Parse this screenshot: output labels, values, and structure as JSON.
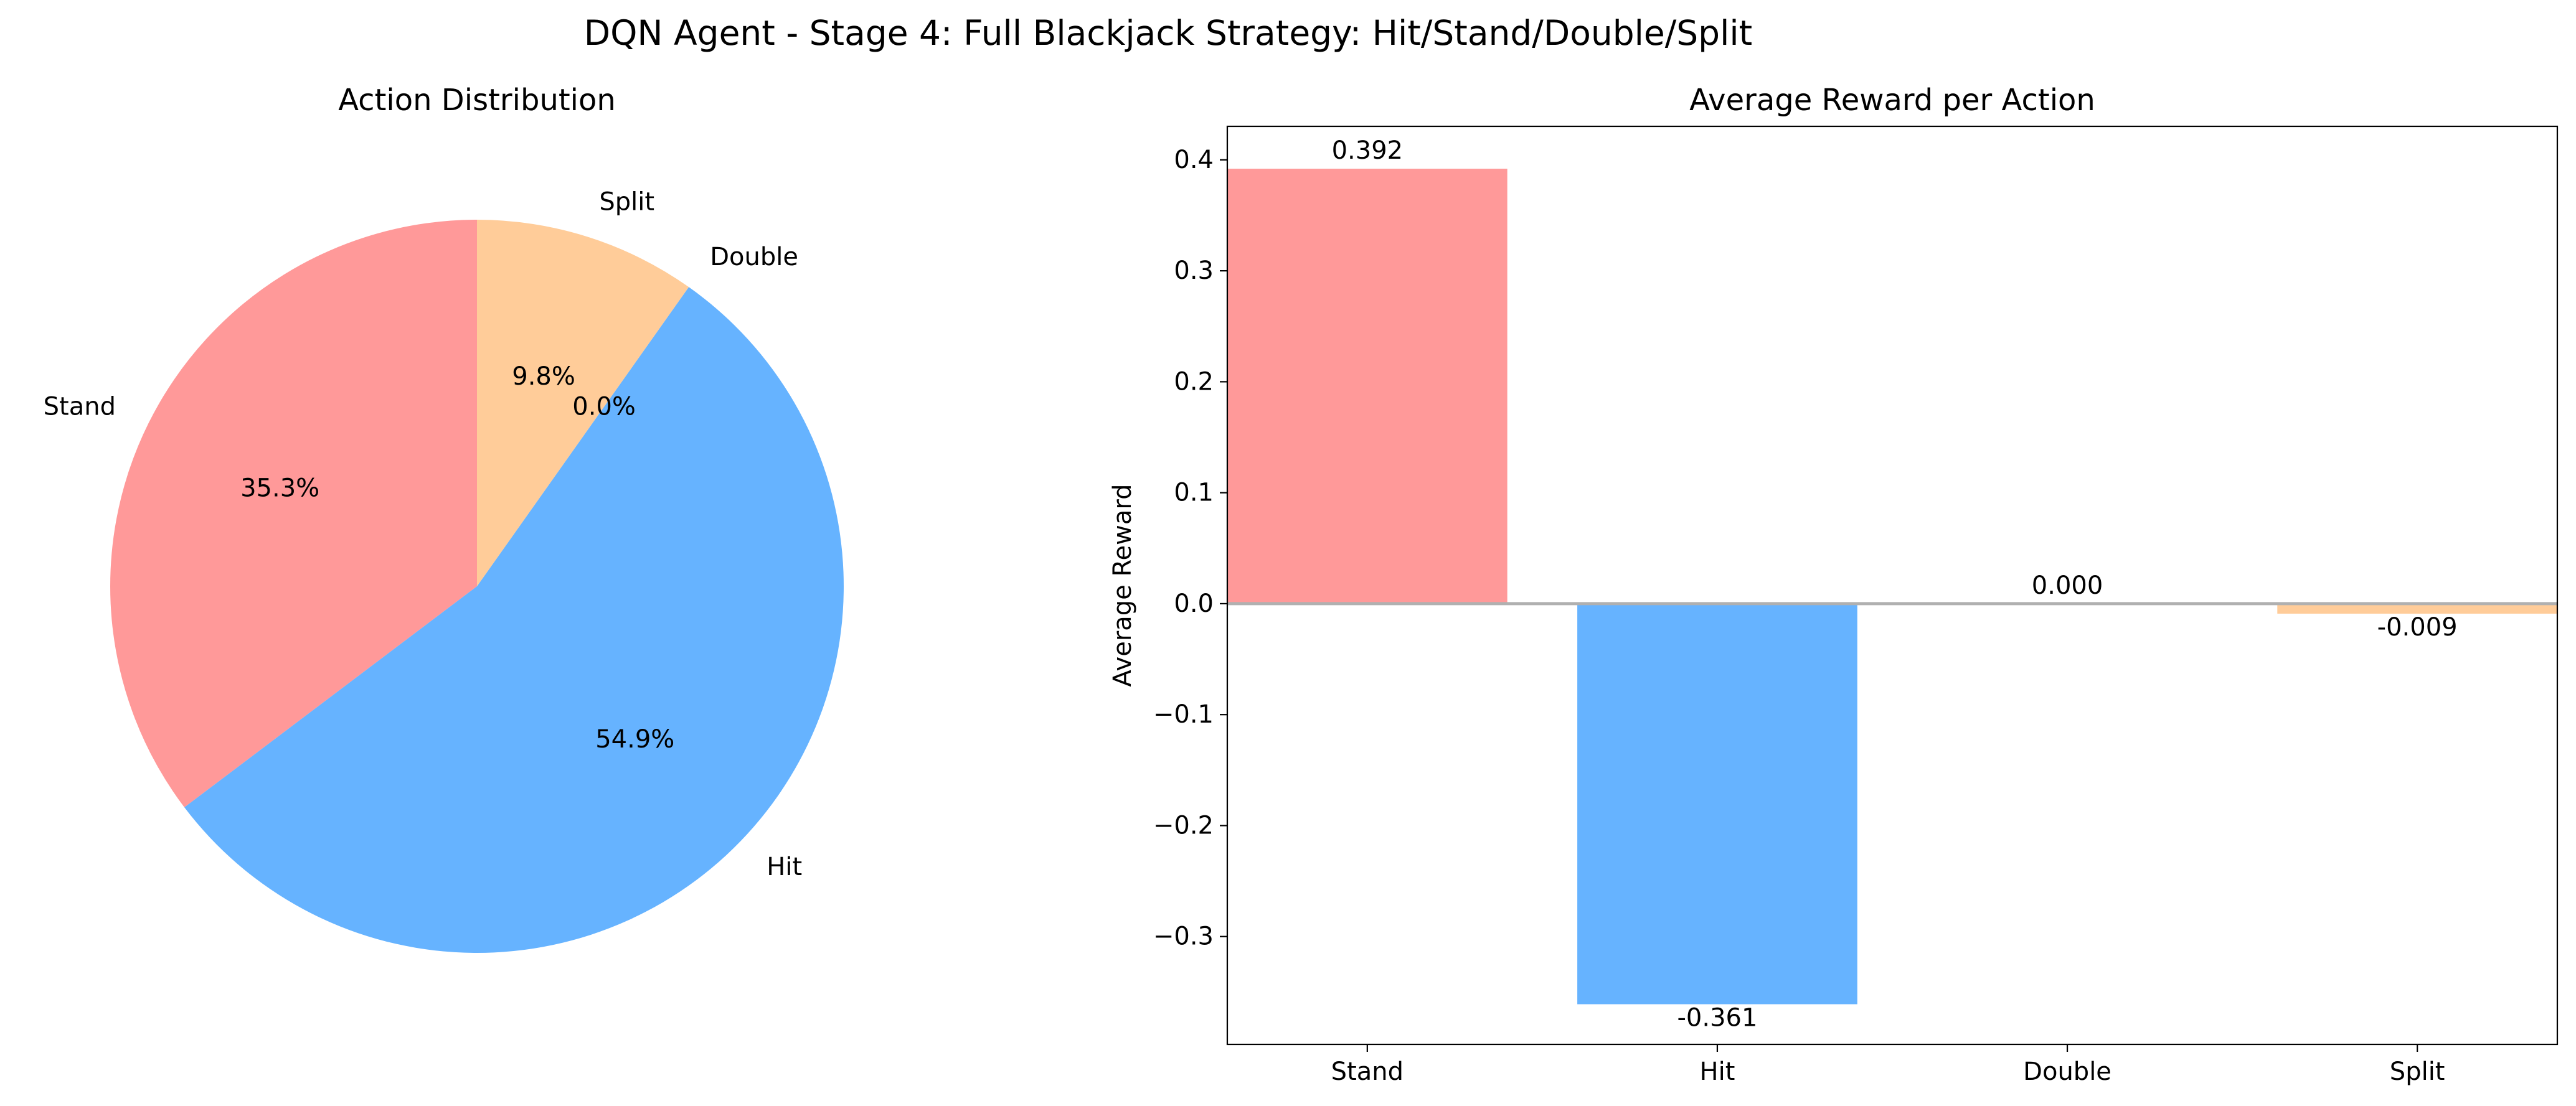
{
  "suptitle": "DQN Agent - Stage 4: Full Blackjack Strategy: Hit/Stand/Double/Split",
  "colors": {
    "Stand": "#ff9999",
    "Hit": "#66b3ff",
    "Double": "#99ff99",
    "Split": "#ffcc99"
  },
  "chart_data": [
    {
      "type": "pie",
      "title": "Action Distribution",
      "labels": [
        "Stand",
        "Hit",
        "Double",
        "Split"
      ],
      "values": [
        35.3,
        54.9,
        0.0,
        9.8
      ],
      "pct_labels": [
        "35.3%",
        "54.9%",
        "0.0%",
        "9.8%"
      ],
      "start_angle_deg": 90,
      "direction": "counterclockwise"
    },
    {
      "type": "bar",
      "title": "Average Reward per Action",
      "ylabel": "Average Reward",
      "categories": [
        "Stand",
        "Hit",
        "Double",
        "Split"
      ],
      "values": [
        0.392,
        -0.361,
        0.0,
        -0.009
      ],
      "value_labels": [
        "0.392",
        "-0.361",
        "0.000",
        "-0.009"
      ],
      "ylim": [
        -0.3972,
        0.4302
      ],
      "yticks": [
        -0.3,
        -0.2,
        -0.1,
        0.0,
        0.1,
        0.2,
        0.3,
        0.4
      ],
      "ytick_labels": [
        "−0.3",
        "−0.2",
        "−0.1",
        "0.0",
        "0.1",
        "0.2",
        "0.3",
        "0.4"
      ],
      "zero_line": true,
      "grid": false
    }
  ]
}
